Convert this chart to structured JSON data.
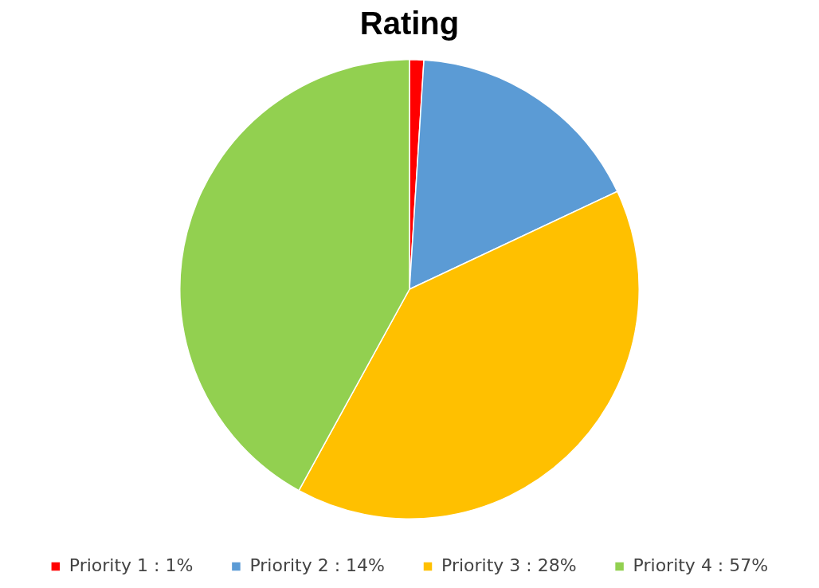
{
  "chart_data": {
    "type": "pie",
    "title": "Rating",
    "categories": [
      "Priority 1 : 1%",
      "Priority 2 : 14%",
      "Priority 3 : 28%",
      "Priority 4 : 57%"
    ],
    "values": [
      1,
      17,
      40,
      42
    ],
    "colors": [
      "#ff0000",
      "#5b9bd5",
      "#ffc000",
      "#92d050"
    ],
    "legend": "bottom"
  }
}
